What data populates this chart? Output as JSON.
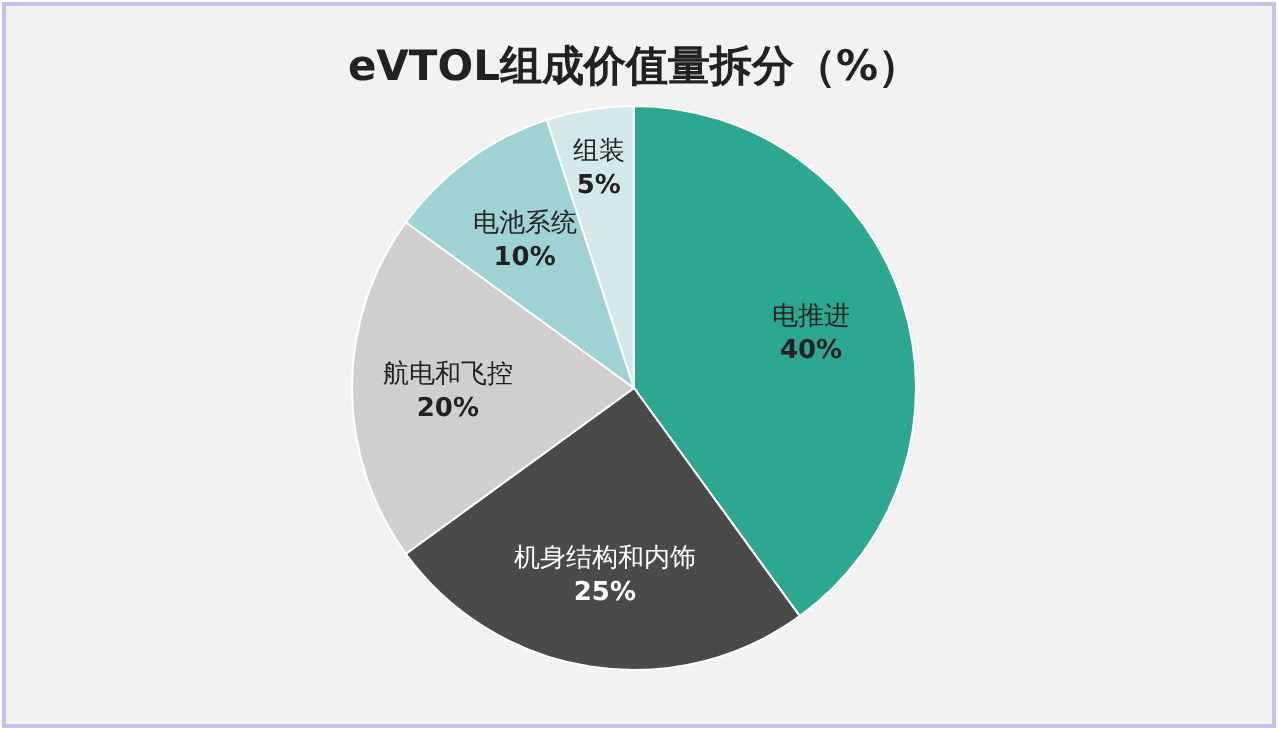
{
  "chart_data": {
    "type": "pie",
    "title": "eVTOL组成价值量拆分（%）",
    "categories": [
      "电推进",
      "机身结构和内饰",
      "航电和飞控",
      "电池系统",
      "组装"
    ],
    "values": [
      40,
      25,
      20,
      10,
      5
    ],
    "colors": [
      "#2ba88f",
      "#4a4a4a",
      "#cfcfcf",
      "#9ed2d3",
      "#d4e8ea"
    ],
    "value_labels": [
      "40%",
      "25%",
      "20%",
      "10%",
      "5%"
    ]
  }
}
